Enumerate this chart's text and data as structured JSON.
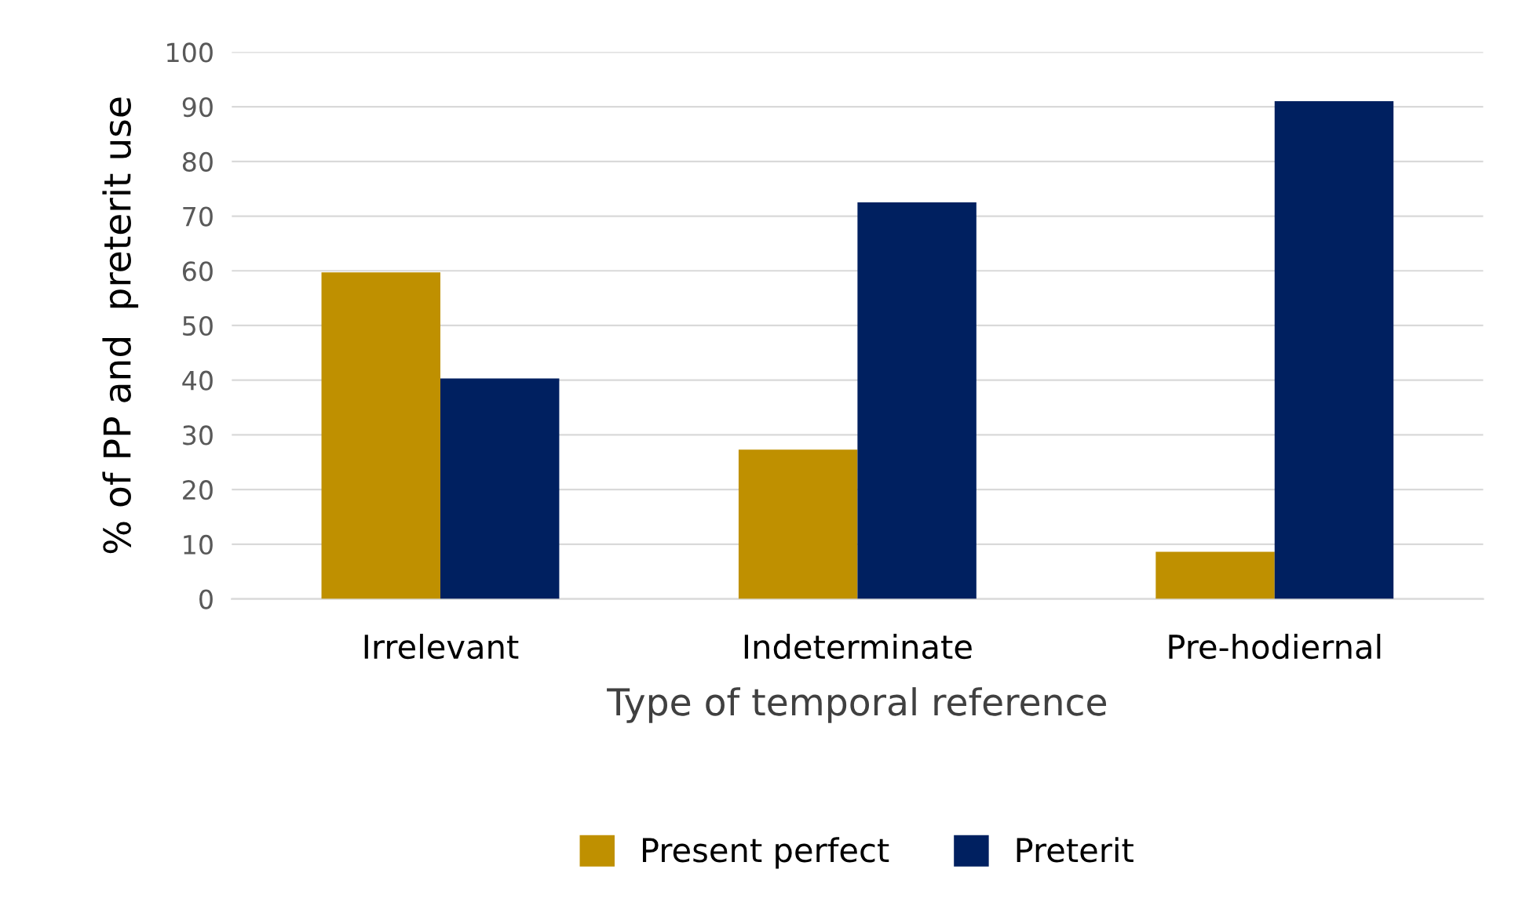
{
  "chart_data": {
    "type": "bar",
    "xlabel": "Type of temporal reference",
    "ylabel": "% of PP and  preterit use",
    "categories": [
      "Irrelevant",
      "Indeterminate",
      "Pre-hodiernal"
    ],
    "series": [
      {
        "name": "Present perfect",
        "color": "#bf9000",
        "values": [
          59.7,
          27.3,
          8.6
        ]
      },
      {
        "name": "Preterit",
        "color": "#002060",
        "values": [
          40.3,
          72.5,
          91
        ]
      }
    ],
    "ylim": [
      0,
      100
    ],
    "yticks": [
      0,
      10,
      20,
      30,
      40,
      50,
      60,
      70,
      80,
      90,
      100
    ],
    "grid": "y",
    "legend": "bottom"
  }
}
